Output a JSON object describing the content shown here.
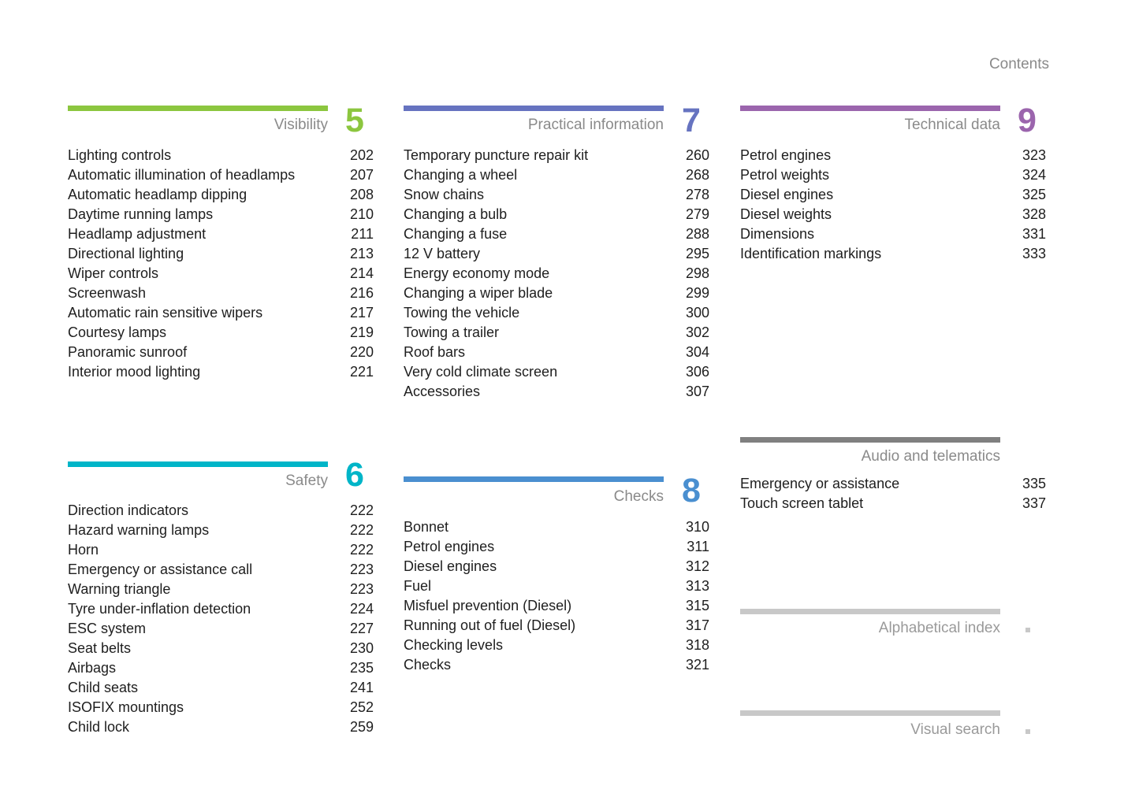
{
  "header": {
    "title": "Contents"
  },
  "sections": {
    "visibility": {
      "title": "Visibility",
      "number": "5",
      "color": "#8cc63f",
      "entries": [
        {
          "label": "Lighting controls",
          "page": "202"
        },
        {
          "label": "Automatic illumination of headlamps",
          "page": "207"
        },
        {
          "label": "Automatic headlamp dipping",
          "page": "208"
        },
        {
          "label": "Daytime running lamps",
          "page": "210"
        },
        {
          "label": "Headlamp adjustment",
          "page": "211"
        },
        {
          "label": "Directional lighting",
          "page": "213"
        },
        {
          "label": "Wiper controls",
          "page": "214"
        },
        {
          "label": "Screenwash",
          "page": "216"
        },
        {
          "label": "Automatic rain sensitive wipers",
          "page": "217"
        },
        {
          "label": "Courtesy lamps",
          "page": "219"
        },
        {
          "label": "Panoramic sunroof",
          "page": "220"
        },
        {
          "label": "Interior mood lighting",
          "page": "221"
        }
      ]
    },
    "practical": {
      "title": "Practical information",
      "number": "7",
      "color": "#6673c0",
      "entries": [
        {
          "label": "Temporary puncture repair kit",
          "page": "260"
        },
        {
          "label": "Changing a wheel",
          "page": "268"
        },
        {
          "label": "Snow chains",
          "page": "278"
        },
        {
          "label": "Changing a bulb",
          "page": "279"
        },
        {
          "label": "Changing a fuse",
          "page": "288"
        },
        {
          "label": "12 V battery",
          "page": "295"
        },
        {
          "label": "Energy economy mode",
          "page": "298"
        },
        {
          "label": "Changing a wiper blade",
          "page": "299"
        },
        {
          "label": "Towing the vehicle",
          "page": "300"
        },
        {
          "label": "Towing a trailer",
          "page": "302"
        },
        {
          "label": "Roof bars",
          "page": "304"
        },
        {
          "label": "Very cold climate screen",
          "page": "306"
        },
        {
          "label": "Accessories",
          "page": "307"
        }
      ]
    },
    "technical": {
      "title": "Technical data",
      "number": "9",
      "color": "#9b65ad",
      "entries": [
        {
          "label": "Petrol engines",
          "page": "323"
        },
        {
          "label": "Petrol weights",
          "page": "324"
        },
        {
          "label": "Diesel engines",
          "page": "325"
        },
        {
          "label": "Diesel weights",
          "page": "328"
        },
        {
          "label": "Dimensions",
          "page": "331"
        },
        {
          "label": "Identification markings",
          "page": "333"
        }
      ]
    },
    "safety": {
      "title": "Safety",
      "number": "6",
      "color": "#00b5c8",
      "entries": [
        {
          "label": "Direction indicators",
          "page": "222"
        },
        {
          "label": "Hazard warning lamps",
          "page": "222"
        },
        {
          "label": "Horn",
          "page": "222"
        },
        {
          "label": "Emergency or assistance call",
          "page": "223"
        },
        {
          "label": "Warning triangle",
          "page": "223"
        },
        {
          "label": "Tyre under-inflation detection",
          "page": "224"
        },
        {
          "label": "ESC system",
          "page": "227"
        },
        {
          "label": "Seat belts",
          "page": "230"
        },
        {
          "label": "Airbags",
          "page": "235"
        },
        {
          "label": "Child seats",
          "page": "241"
        },
        {
          "label": "ISOFIX mountings",
          "page": "252"
        },
        {
          "label": "Child lock",
          "page": "259"
        }
      ]
    },
    "checks": {
      "title": "Checks",
      "number": "8",
      "color": "#4a8fd0",
      "entries": [
        {
          "label": "Bonnet",
          "page": "310"
        },
        {
          "label": "Petrol engines",
          "page": "311"
        },
        {
          "label": "Diesel engines",
          "page": "312"
        },
        {
          "label": "Fuel",
          "page": "313"
        },
        {
          "label": "Misfuel prevention (Diesel)",
          "page": "315"
        },
        {
          "label": "Running out of fuel (Diesel)",
          "page": "317"
        },
        {
          "label": "Checking levels",
          "page": "318"
        },
        {
          "label": "Checks",
          "page": "321"
        }
      ]
    },
    "audio": {
      "title": "Audio and telematics",
      "color": "#808080",
      "entries": [
        {
          "label": "Emergency or assistance",
          "page": "335"
        },
        {
          "label": "Touch screen tablet",
          "page": "337"
        }
      ]
    },
    "alphabetical": {
      "title": "Alphabetical index",
      "color": "#c8c8c8"
    },
    "visual": {
      "title": "Visual search",
      "color": "#c8c8c8"
    }
  }
}
